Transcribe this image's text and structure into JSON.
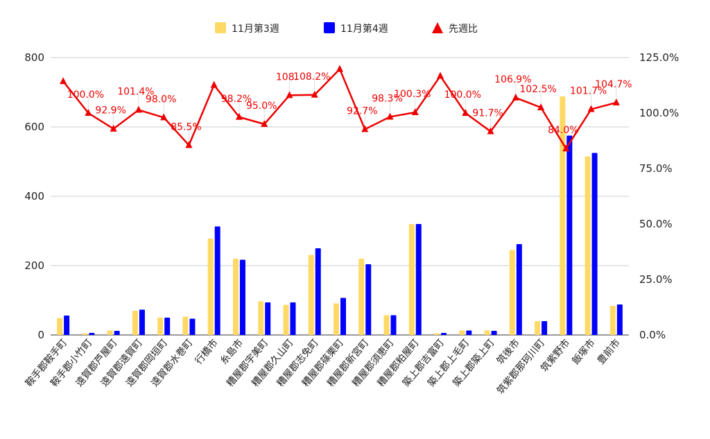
{
  "chart_data": {
    "type": "bar",
    "categories": [
      "鞍手郡鞍手町",
      "鞍手郡小竹町",
      "遠賀郡芦屋町",
      "遠賀郡遠賀町",
      "遠賀郡岡垣町",
      "遠賀郡水巻町",
      "行橋市",
      "糸島市",
      "糟屋郡宇美町",
      "糟屋郡久山町",
      "糟屋郡志免町",
      "糟屋郡篠栗町",
      "糟屋郡新宮町",
      "糟屋郡須恵町",
      "糟屋郡粕屋町",
      "築上郡吉富町",
      "築上郡上毛町",
      "築上郡築上町",
      "筑後市",
      "筑紫郡那珂川町",
      "筑紫野市",
      "飯塚市",
      "豊前市"
    ],
    "series": [
      {
        "name": "11月第3週",
        "type": "bar",
        "axis": "left",
        "color": "#FFD966",
        "values": [
          49,
          5,
          13,
          70,
          50,
          53,
          278,
          220,
          97,
          87,
          231,
          91,
          220,
          57,
          320,
          5,
          13,
          13,
          245,
          40,
          688,
          515,
          84
        ]
      },
      {
        "name": "11月第4週",
        "type": "bar",
        "axis": "left",
        "color": "#0000FF",
        "values": [
          56,
          6,
          12,
          73,
          50,
          47,
          313,
          217,
          94,
          94,
          250,
          107,
          204,
          57,
          320,
          6,
          13,
          12,
          262,
          40,
          575,
          525,
          88
        ]
      },
      {
        "name": "先週比",
        "type": "line",
        "axis": "right",
        "color": "#EE0000",
        "marker": "triangle",
        "values": [
          114.3,
          100.0,
          92.9,
          101.4,
          98.0,
          85.5,
          112.6,
          98.2,
          95.0,
          108.0,
          108.2,
          119.8,
          92.7,
          98.3,
          100.3,
          116.7,
          100.0,
          91.7,
          106.9,
          102.5,
          84.0,
          101.7,
          104.7
        ],
        "labels": [
          "",
          "100.0%",
          "92.9%",
          "101.4%",
          "98.0%",
          "85.5%",
          "",
          "98.2%",
          "95.0%",
          "108.",
          "108.2%",
          "",
          "92.7%",
          "98.3%",
          "100.3%",
          "",
          "100.0%",
          "91.7%",
          "106.9%",
          "102.5%",
          "84.0%",
          "101.7%",
          "104.7%"
        ]
      }
    ],
    "y_left": {
      "ylim": [
        0,
        800
      ],
      "ticks": [
        "0",
        "200",
        "400",
        "600",
        "800"
      ],
      "tick_values": [
        0,
        200,
        400,
        600,
        800
      ]
    },
    "y_right": {
      "ylim": [
        0,
        125
      ],
      "ticks": [
        "0.0%",
        "25.0%",
        "50.0%",
        "75.0%",
        "100.0%",
        "125.0%"
      ],
      "tick_values": [
        0,
        25,
        50,
        75,
        100,
        125
      ]
    },
    "grid": true,
    "legend": "top-center",
    "title": "",
    "xlabel": "",
    "ylabel": ""
  }
}
